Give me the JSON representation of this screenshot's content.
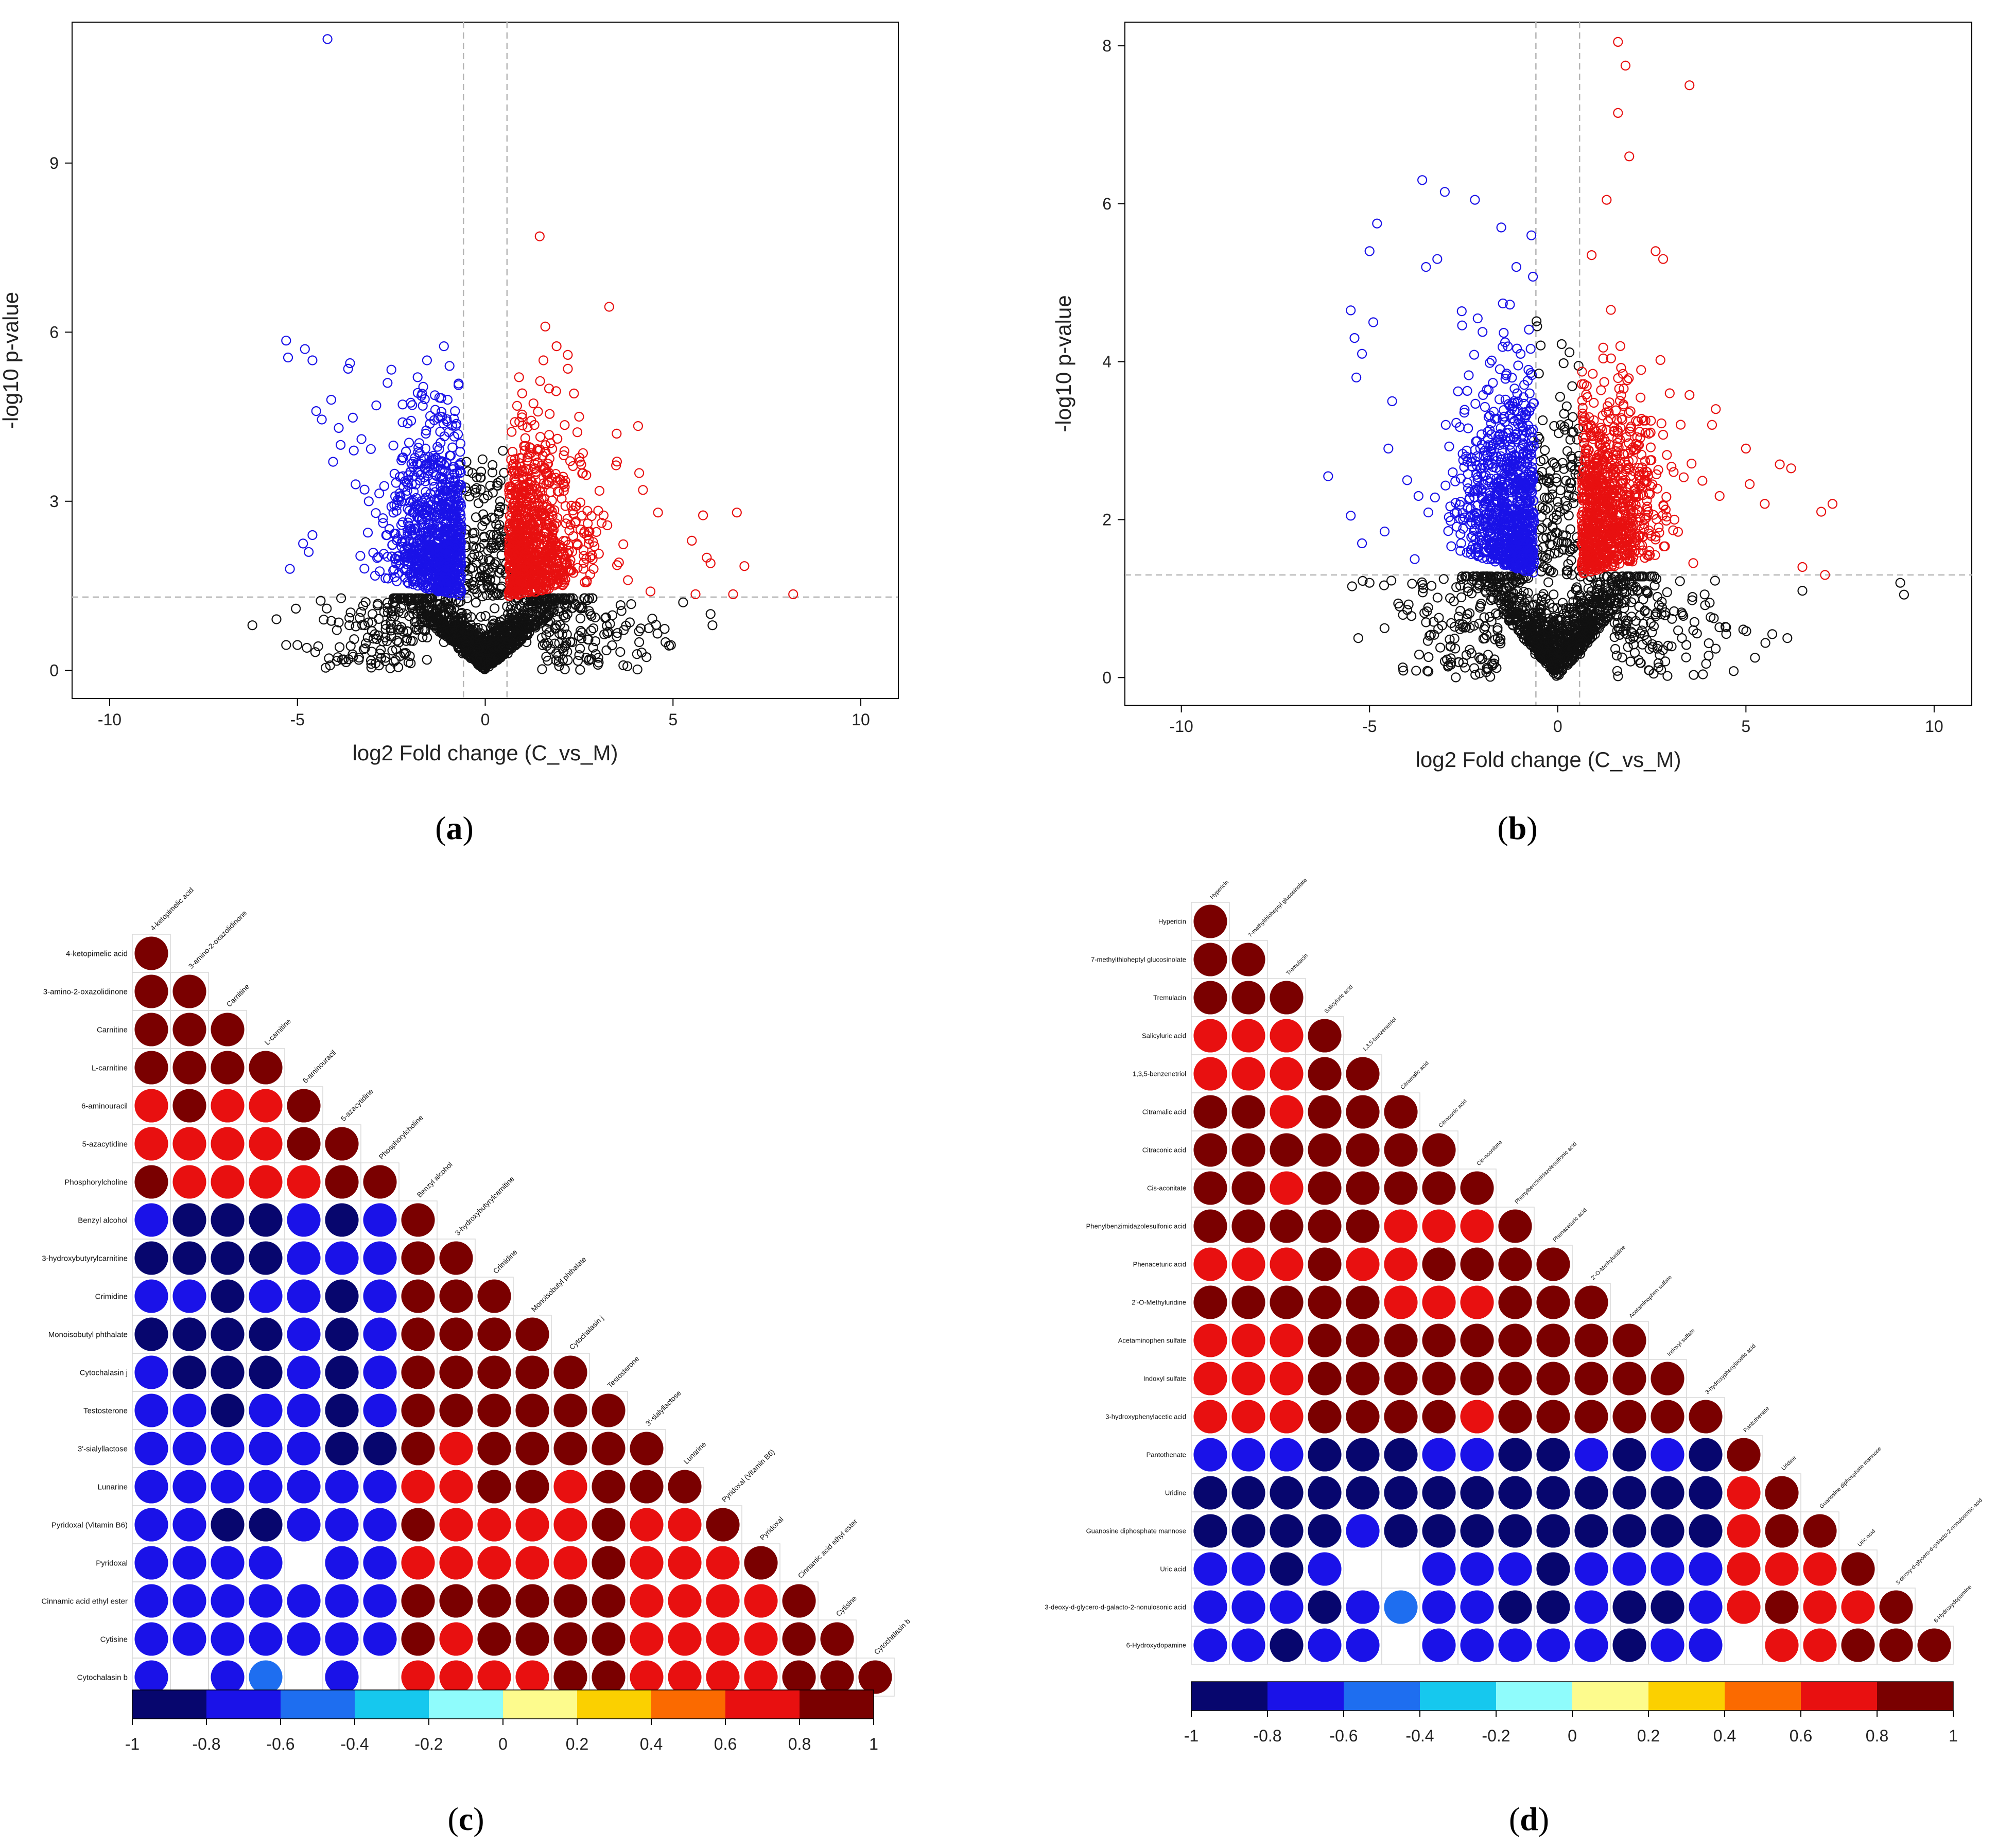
{
  "chart_data": [
    {
      "type": "scatter",
      "panel": "a",
      "caption_letter": "a",
      "caption_open": "(",
      "caption_close": ")",
      "xlabel": "log2 Fold change (C_vs_M)",
      "ylabel": "-log10 p-value",
      "xlim": [
        -11,
        11
      ],
      "ylim": [
        -0.5,
        11.5
      ],
      "xticks": [
        -10,
        -5,
        0,
        5,
        10
      ],
      "yticks": [
        0,
        3,
        6,
        9
      ],
      "thresholds": {
        "fc": 0.58,
        "p": 1.3
      },
      "series": [
        {
          "name": "down",
          "color": "#1f1fe8",
          "values": [
            [
              -4.2,
              11.2
            ],
            [
              -5.3,
              5.85
            ],
            [
              -5.25,
              5.55
            ],
            [
              -4.8,
              5.7
            ],
            [
              -4.6,
              5.5
            ],
            [
              -3.6,
              5.45
            ],
            [
              -3.65,
              5.35
            ],
            [
              -4.1,
              4.8
            ],
            [
              -4.5,
              4.6
            ],
            [
              -4.35,
              4.45
            ],
            [
              -3.9,
              4.3
            ],
            [
              -3.85,
              4.0
            ],
            [
              -3.5,
              3.9
            ],
            [
              -4.05,
              3.7
            ],
            [
              -4.7,
              2.1
            ],
            [
              -5.2,
              1.8
            ],
            [
              -4.6,
              2.4
            ],
            [
              -4.85,
              2.25
            ],
            [
              -3.45,
              3.3
            ],
            [
              -3.1,
              3.0
            ],
            [
              -2.6,
              5.1
            ],
            [
              -1.8,
              5.2
            ],
            [
              -1.1,
              5.75
            ],
            [
              -1.55,
              5.5
            ],
            [
              -2.9,
              4.7
            ],
            [
              -2.2,
              4.4
            ],
            [
              -0.95,
              5.4
            ],
            [
              -1.0,
              4.8
            ]
          ]
        },
        {
          "name": "up",
          "color": "#e81f1f",
          "values": [
            [
              1.45,
              7.7
            ],
            [
              3.3,
              6.45
            ],
            [
              1.6,
              6.1
            ],
            [
              1.9,
              5.75
            ],
            [
              1.55,
              5.5
            ],
            [
              2.2,
              5.35
            ],
            [
              0.9,
              5.2
            ],
            [
              1.7,
              5.0
            ],
            [
              2.5,
              4.5
            ],
            [
              3.5,
              4.2
            ],
            [
              4.1,
              3.5
            ],
            [
              4.2,
              3.2
            ],
            [
              6.7,
              2.8
            ],
            [
              5.8,
              2.75
            ],
            [
              4.6,
              2.8
            ],
            [
              5.5,
              2.3
            ],
            [
              5.9,
              2.0
            ],
            [
              6.0,
              1.9
            ],
            [
              6.9,
              1.85
            ],
            [
              5.6,
              1.35
            ],
            [
              6.6,
              1.35
            ],
            [
              8.2,
              1.35
            ],
            [
              4.4,
              1.4
            ],
            [
              3.8,
              1.6
            ],
            [
              2.6,
              3.5
            ]
          ]
        },
        {
          "name": "ns",
          "color": "#111111",
          "values": [
            [
              -6.2,
              0.8
            ],
            [
              -5.3,
              0.45
            ],
            [
              -5.0,
              0.45
            ],
            [
              -4.75,
              0.4
            ],
            [
              -4.3,
              0.9
            ],
            [
              -3.9,
              0.85
            ],
            [
              -3.0,
              1.0
            ],
            [
              -2.5,
              0.6
            ],
            [
              -1.6,
              0.7
            ],
            [
              -1.1,
              0.5
            ],
            [
              -0.6,
              0.3
            ],
            [
              0.6,
              0.3
            ],
            [
              1.1,
              0.5
            ],
            [
              1.9,
              0.8
            ],
            [
              2.8,
              1.0
            ],
            [
              3.5,
              0.6
            ],
            [
              4.1,
              0.5
            ],
            [
              4.8,
              0.5
            ],
            [
              6.0,
              1.0
            ],
            [
              6.05,
              0.8
            ],
            [
              -0.4,
              1.8
            ],
            [
              0.4,
              1.8
            ],
            [
              -0.5,
              3.7
            ],
            [
              0.4,
              2.9
            ],
            [
              -0.25,
              1.2
            ],
            [
              0.25,
              1.1
            ]
          ]
        }
      ]
    },
    {
      "type": "scatter",
      "panel": "b",
      "caption_letter": "b",
      "caption_open": "(",
      "caption_close": ")",
      "xlabel": "log2 Fold change (C_vs_M)",
      "ylabel": "-log10 p-value",
      "xlim": [
        -11.5,
        11
      ],
      "ylim": [
        -0.35,
        8.3
      ],
      "xticks": [
        -10,
        -5,
        0,
        5,
        10
      ],
      "yticks": [
        0,
        2,
        4,
        6,
        8
      ],
      "thresholds": {
        "fc": 0.58,
        "p": 1.3
      },
      "series": [
        {
          "name": "down",
          "color": "#1f1fe8",
          "values": [
            [
              -3.6,
              6.3
            ],
            [
              -3.0,
              6.15
            ],
            [
              -2.2,
              6.05
            ],
            [
              -4.8,
              5.75
            ],
            [
              -5.0,
              5.4
            ],
            [
              -3.2,
              5.3
            ],
            [
              -3.5,
              5.2
            ],
            [
              -5.5,
              4.65
            ],
            [
              -5.4,
              4.3
            ],
            [
              -5.2,
              4.1
            ],
            [
              -4.9,
              4.5
            ],
            [
              -5.35,
              3.8
            ],
            [
              -6.1,
              2.55
            ],
            [
              -5.5,
              2.05
            ],
            [
              -5.2,
              1.7
            ],
            [
              -4.4,
              3.5
            ],
            [
              -4.0,
              2.5
            ],
            [
              -3.7,
              2.3
            ],
            [
              -1.5,
              5.7
            ],
            [
              -0.7,
              5.6
            ],
            [
              -1.1,
              5.2
            ],
            [
              -4.5,
              2.9
            ],
            [
              -4.6,
              1.85
            ],
            [
              -3.8,
              1.5
            ]
          ]
        },
        {
          "name": "up",
          "color": "#e81f1f",
          "values": [
            [
              1.6,
              8.05
            ],
            [
              1.8,
              7.75
            ],
            [
              1.6,
              7.15
            ],
            [
              3.5,
              7.5
            ],
            [
              1.9,
              6.6
            ],
            [
              1.3,
              6.05
            ],
            [
              0.9,
              5.35
            ],
            [
              2.6,
              5.4
            ],
            [
              2.8,
              5.3
            ],
            [
              4.2,
              3.4
            ],
            [
              4.1,
              3.2
            ],
            [
              5.0,
              2.9
            ],
            [
              5.1,
              2.45
            ],
            [
              5.9,
              2.7
            ],
            [
              6.2,
              2.65
            ],
            [
              7.3,
              2.2
            ],
            [
              7.0,
              2.1
            ],
            [
              6.5,
              1.4
            ],
            [
              7.1,
              1.3
            ],
            [
              3.6,
              1.45
            ],
            [
              4.3,
              2.3
            ],
            [
              5.5,
              2.2
            ],
            [
              3.1,
              2.0
            ]
          ]
        },
        {
          "name": "ns",
          "color": "#111111",
          "values": [
            [
              -5.3,
              0.5
            ],
            [
              -5.0,
              1.2
            ],
            [
              -4.2,
              0.9
            ],
            [
              -3.5,
              0.7
            ],
            [
              -2.4,
              0.8
            ],
            [
              -1.6,
              0.6
            ],
            [
              -0.6,
              0.3
            ],
            [
              0.6,
              0.3
            ],
            [
              1.8,
              0.6
            ],
            [
              2.6,
              0.8
            ],
            [
              3.3,
              0.5
            ],
            [
              3.6,
              0.6
            ],
            [
              5.7,
              0.55
            ],
            [
              6.1,
              0.5
            ],
            [
              9.1,
              1.2
            ],
            [
              9.2,
              1.05
            ],
            [
              6.5,
              1.1
            ],
            [
              -0.3,
              2.5
            ],
            [
              0.3,
              2.4
            ],
            [
              -0.5,
              3.85
            ],
            [
              0.4,
              3.3
            ]
          ]
        }
      ]
    },
    {
      "type": "heatmap",
      "panel": "c",
      "caption_letter": "c",
      "caption_open": "(",
      "caption_close": ")",
      "labels": [
        "4-ketopimelic acid",
        "3-amino-2-oxazolidinone",
        "Carnitine",
        "L-carnitine",
        "6-aminouracil",
        "5-azacytidine",
        "Phosphorylcholine",
        "Benzyl alcohol",
        "3-hydroxybutyrylcarnitine",
        "Crimidine",
        "Monoisobutyl phthalate",
        "Cytochalasin j",
        "Testosterone",
        "3'-sialyllactose",
        "Lunarine",
        "Pyridoxal (Vitamin B6)",
        "Pyridoxal",
        "Cinnamic acid ethyl ester",
        "Cytisine",
        "Cytochalasin b"
      ],
      "cells": [
        "A",
        "AA",
        "AAA",
        "AAAA",
        "RARRA",
        "RRRRAA",
        "ARRRRAA",
        "BNNNBNBA",
        "NNNNBBBAA",
        "BBNBBNBAAA",
        "NNNNBNBAAAA",
        "BNNNBNBAAAAA",
        "BBNBBNBAAAAAA",
        "BBBBBNNARAAAAA",
        "BBBBBBBRRAARAAA",
        "BBNNBBBARRRRARRA",
        "BBBB.BBRRRRRARRRA",
        "BBBBBBBAAAAAARRRRA",
        "BBBBBBBARAAAARRRRAA",
        "B.BL.B.RRRRAARRRRAAA"
      ],
      "colorbar_ticks": [
        "-1",
        "-0.8",
        "-0.6",
        "-0.4",
        "-0.2",
        "0",
        "0.2",
        "0.4",
        "0.6",
        "0.8",
        "1"
      ]
    },
    {
      "type": "heatmap",
      "panel": "d",
      "caption_letter": "d",
      "caption_open": "(",
      "caption_close": ")",
      "labels": [
        "Hypericin",
        "7-methylthioheptyl glucosinolate",
        "Tremulacin",
        "Salicyluric acid",
        "1,3,5-benzenetriol",
        "Citramalic acid",
        "Citraconic acid",
        "Cis-aconitate",
        "Phenylbenzimidazolesulfonic acid",
        "Phenaceturic acid",
        "2'-O-Methyluridine",
        "Acetaminophen sulfate",
        "Indoxyl sulfate",
        "3-hydroxyphenylacetic acid",
        "Pantothenate",
        "Uridine",
        "Guanosine diphosphate mannose",
        "Uric acid",
        "3-deoxy-d-glycero-d-galacto-2-nonulosonic acid",
        "6-Hydroxydopamine"
      ],
      "cells": [
        "A",
        "AA",
        "AAA",
        "RRRA",
        "RRRAA",
        "AARAAA",
        "AAAAAAA",
        "AARAAAAA",
        "AAAAARRRA",
        "RRRARRAAAA",
        "AAAAARRRAAA",
        "RRRAAAAAAAAA",
        "RRRAAAAAAAAAA",
        "RRRAAAARAAAAAA",
        "BBBNNNBBNNBNBNA",
        "NNNNNNNNNNNNNNRA",
        "NNNNBNNNNNNNNNRAA",
        "BBNB..BBBNBBBBRRRA",
        "BBBNBLBBNNBNNBRARRA",
        "BBNBB.BBBBBNBB.RRAAA"
      ],
      "colorbar_ticks": [
        "-1",
        "-0.8",
        "-0.6",
        "-0.4",
        "-0.2",
        "0",
        "0.2",
        "0.4",
        "0.6",
        "0.8",
        "1"
      ]
    }
  ],
  "palette": {
    "A": "#7a0000",
    "R": "#e81010",
    "B": "#1a12e8",
    "N": "#07066e",
    "L": "#1e6ef0",
    "colorbar": [
      "#07066e",
      "#1a12e8",
      "#1e6ef0",
      "#16c8ee",
      "#8ffcfc",
      "#fdfb8d",
      "#fbd000",
      "#fb6a00",
      "#e81010",
      "#7a0000"
    ],
    "grid": "#d8d8d8",
    "threshold_line": "#b5b5b5"
  }
}
